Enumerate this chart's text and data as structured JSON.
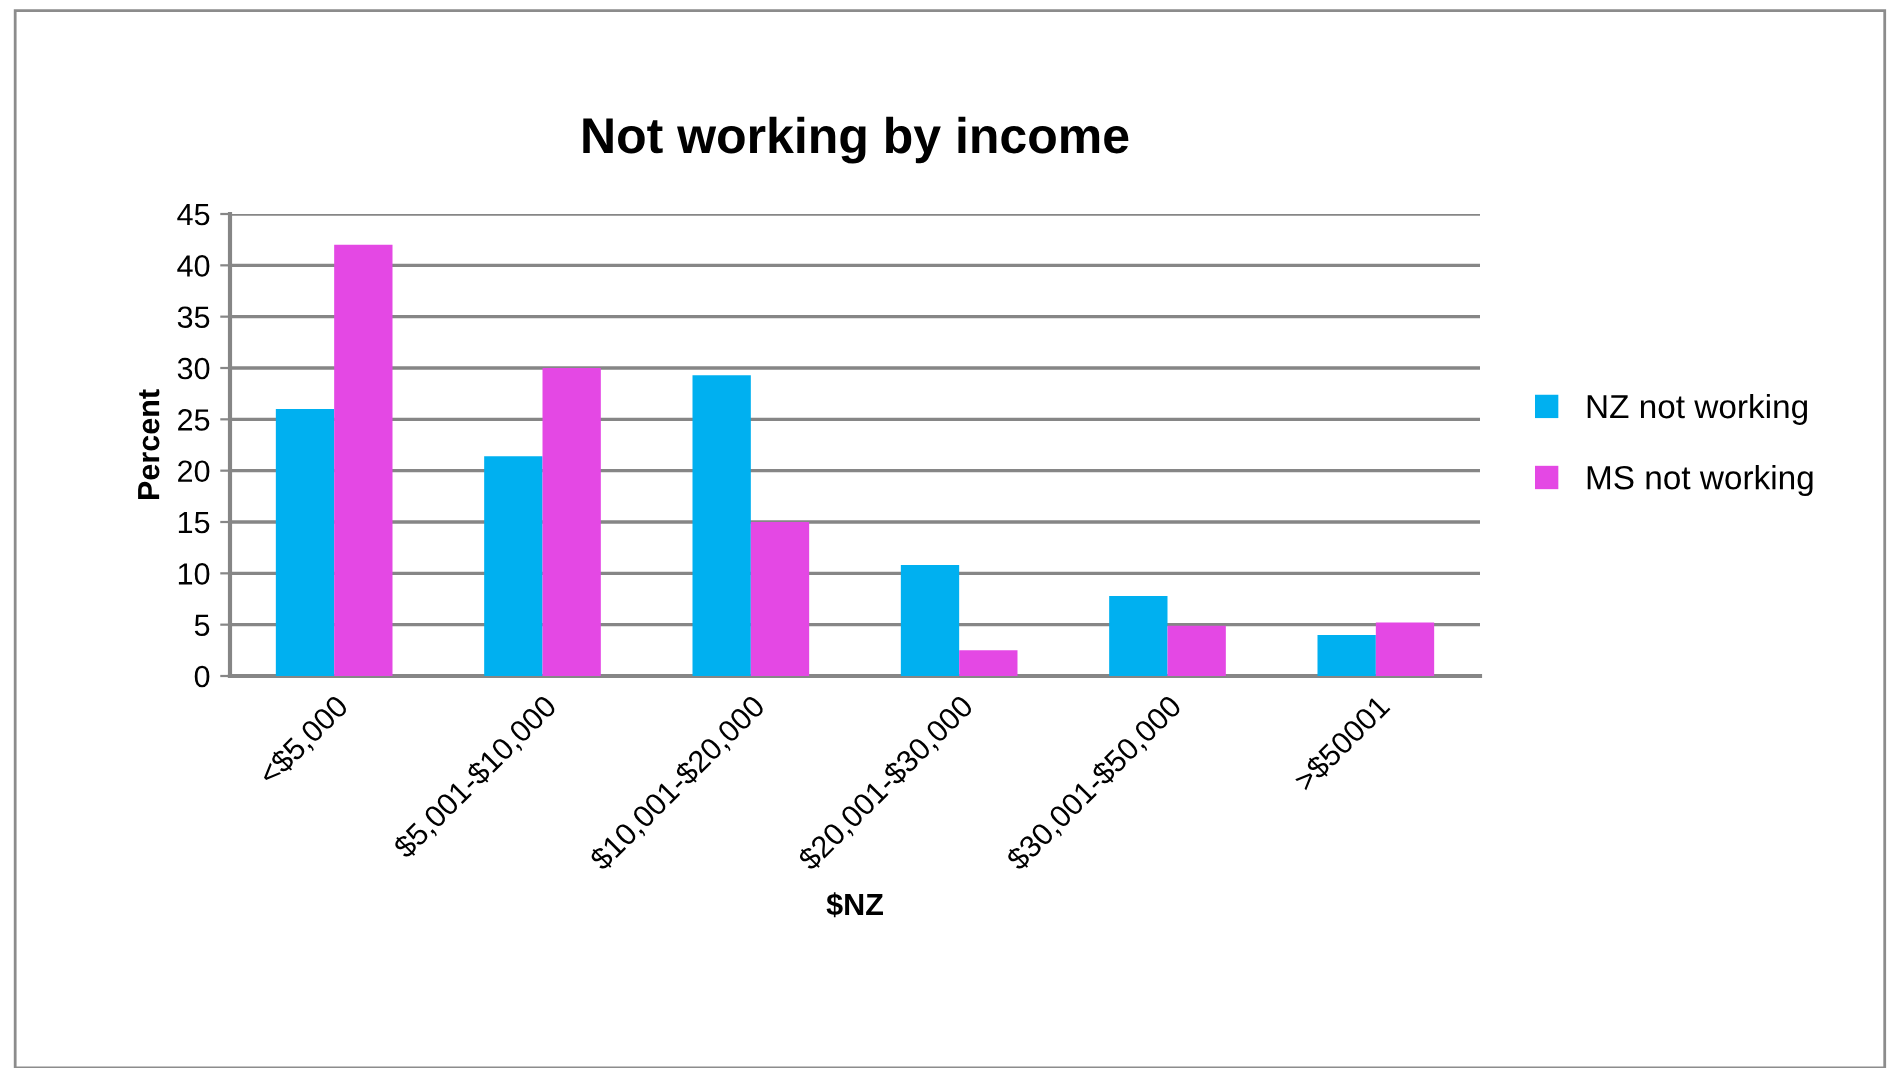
{
  "chart_data": {
    "type": "bar",
    "title": "Not working by income",
    "xlabel": "$NZ",
    "ylabel": "Percent",
    "categories": [
      "<$5,000",
      "$5,001-$10,000",
      "$10,001-$20,000",
      "$20,001-$30,000",
      "$30,001-$50,000",
      ">$50001"
    ],
    "series": [
      {
        "name": "NZ not working",
        "color": "#00b0f0",
        "values": [
          26,
          21.4,
          29.3,
          10.8,
          7.8,
          4.0
        ]
      },
      {
        "name": "MS not working",
        "color": "#e448e4",
        "values": [
          42,
          30,
          15,
          2.5,
          4.9,
          5.2
        ]
      }
    ],
    "ylim": [
      0,
      45
    ],
    "yticks": [
      0,
      5,
      10,
      15,
      20,
      25,
      30,
      35,
      40,
      45
    ],
    "grid": "y",
    "legend": "right"
  }
}
